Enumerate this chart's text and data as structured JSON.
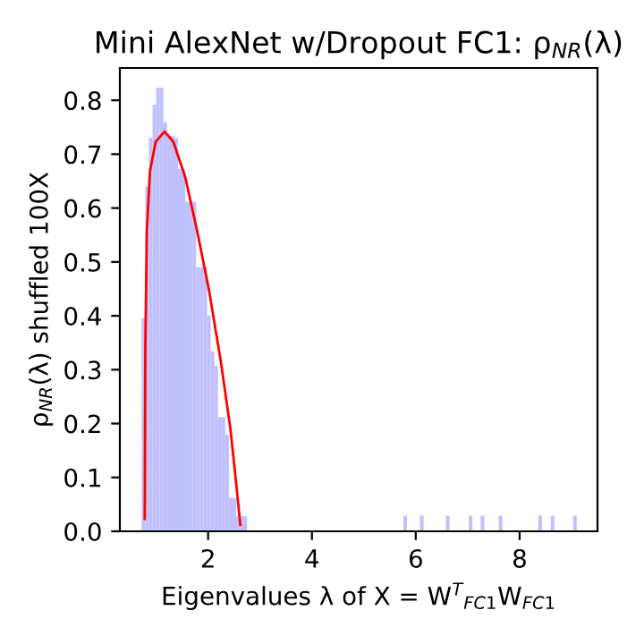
{
  "chart_data": {
    "type": "histogram",
    "title": "Mini AlexNet w/Dropout FC1: ρ$_{NR}$(λ)",
    "xlabel": "Eigenvalues λ of X = W$^{T}$$_{FC1}$W$_{FC1}$",
    "ylabel": "ρ$_{NR}$(λ) shuffled 100X",
    "bins": [
      0.72,
      0.79,
      0.86,
      0.93,
      1.0,
      1.07,
      1.14,
      1.21,
      1.28,
      1.35,
      1.42,
      1.49,
      1.56,
      1.63,
      1.7,
      1.77,
      1.84,
      1.91,
      1.98,
      2.05,
      2.12,
      2.19,
      2.26,
      2.33,
      2.4,
      2.47,
      2.54,
      2.61,
      2.68,
      2.75,
      5.76,
      5.83,
      6.08,
      6.15,
      6.58,
      6.65,
      7.02,
      7.09,
      7.25,
      7.32,
      7.6,
      7.67,
      8.36,
      8.43,
      8.6,
      8.67,
      9.03,
      9.1
    ],
    "values": [
      0.396,
      0.64,
      0.731,
      0.792,
      0.823,
      0.823,
      0.759,
      0.734,
      0.734,
      0.73,
      0.673,
      0.673,
      0.612,
      0.612,
      0.612,
      0.49,
      0.49,
      0.49,
      0.401,
      0.334,
      0.307,
      0.212,
      0.212,
      0.179,
      0.062,
      0.062,
      0.028,
      0.028,
      0.028,
      0,
      0.029,
      0,
      0.029,
      0,
      0.029,
      0,
      0.029,
      0,
      0.029,
      0,
      0.029,
      0,
      0.029,
      0,
      0.029,
      0,
      0.029
    ],
    "color": "#c0c0ff",
    "series": [
      {
        "type": "line",
        "color": "#ff0000",
        "x": [
          0.78,
          0.79,
          0.82,
          0.88,
          0.99,
          1.16,
          1.33,
          1.56,
          1.79,
          2.02,
          2.25,
          2.43,
          2.54,
          2.62
        ],
        "values": [
          0.023,
          0.334,
          0.557,
          0.668,
          0.723,
          0.742,
          0.723,
          0.657,
          0.557,
          0.446,
          0.312,
          0.19,
          0.09,
          0.012
        ]
      }
    ],
    "xlim": [
      0.3,
      9.5
    ],
    "ylim": [
      0,
      0.86
    ],
    "xticks": [
      2,
      4,
      6,
      8
    ],
    "yticks": [
      {
        "value": 0,
        "label": "0.0"
      },
      0.1,
      0.2,
      0.3,
      0.4,
      0.5,
      0.6,
      0.7,
      0.8
    ]
  }
}
